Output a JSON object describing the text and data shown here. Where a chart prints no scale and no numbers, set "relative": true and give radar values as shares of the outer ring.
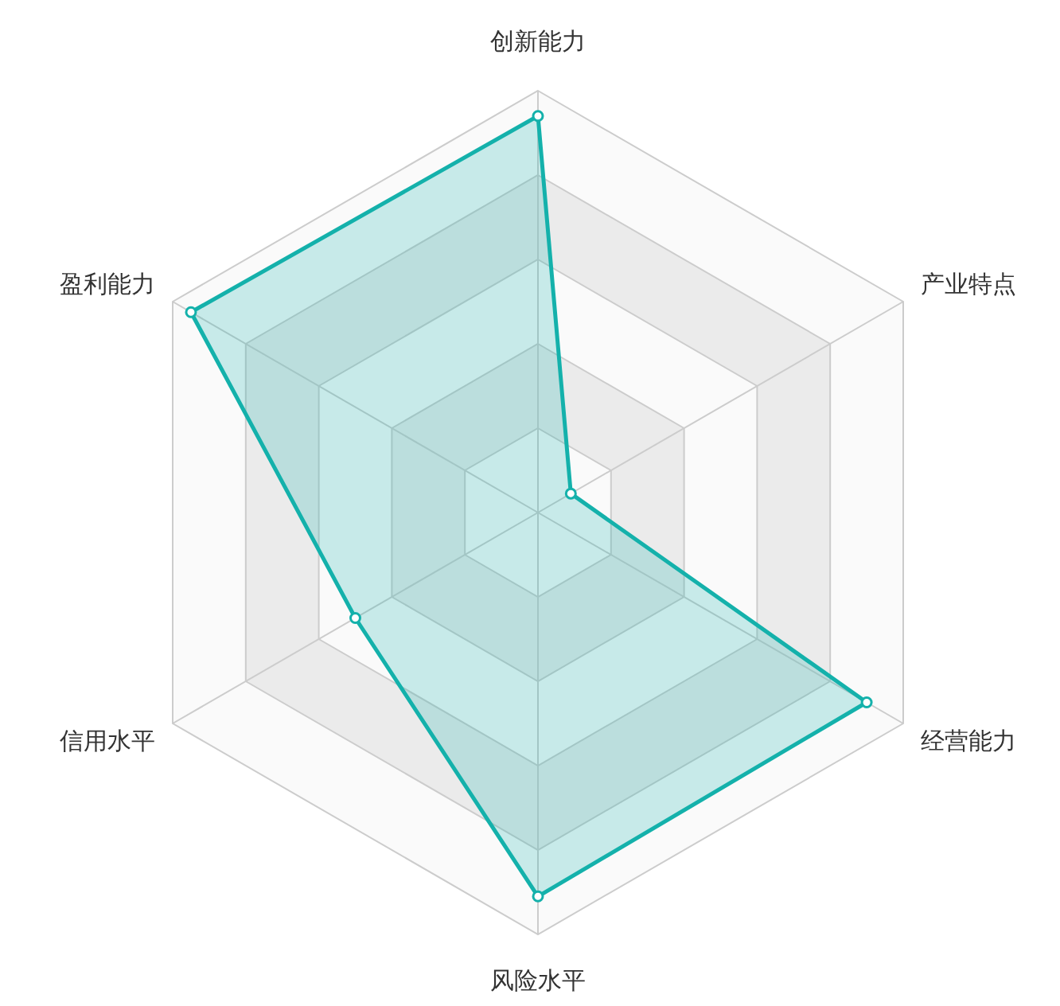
{
  "chart_data": {
    "type": "radar",
    "relative": true,
    "marker": "circle",
    "line_style": "solid",
    "categories": [
      "创新能力",
      "产业特点",
      "经营能力",
      "风险水平",
      "信用水平",
      "盈利能力"
    ],
    "series": [
      {
        "color": "#14b1ab",
        "values": [
          0.94,
          0.09,
          0.9,
          0.91,
          0.5,
          0.95
        ]
      }
    ]
  }
}
